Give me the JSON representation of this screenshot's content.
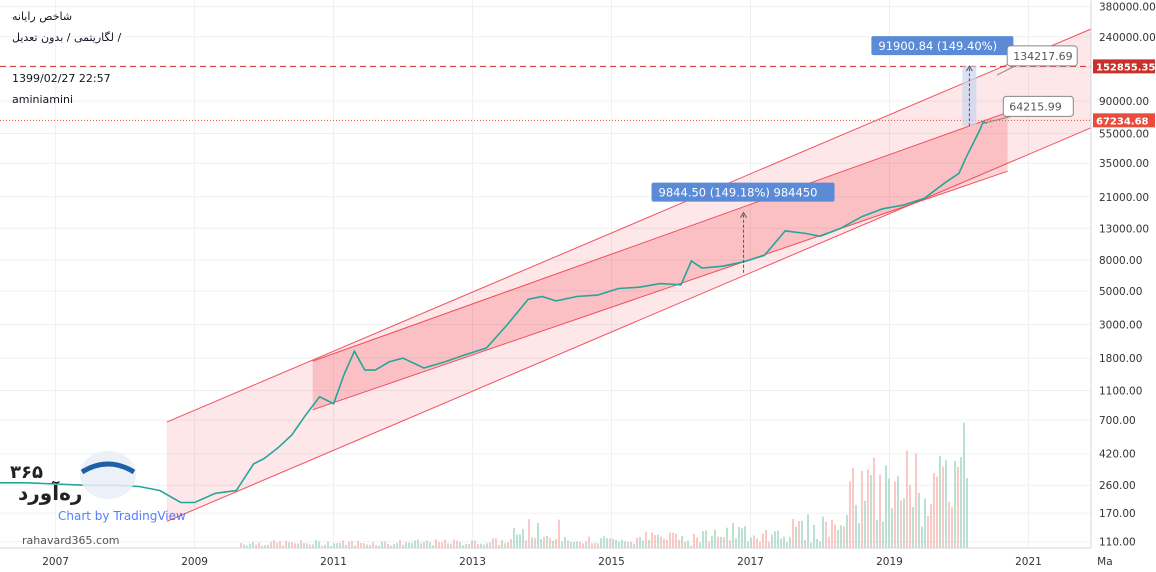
{
  "header": {
    "symbol_name": "شاخص رایانه",
    "scale_info": "لگاریتمی / بدون تعدیل /",
    "datetime": "1399/02/27 22:57",
    "author": "aminiamini"
  },
  "watermark": {
    "brand_number": "۳۶۵",
    "brand_name": "ره‌آورد",
    "chart_text": "Chart by TradingView",
    "website": "rahavard365.com"
  },
  "colors": {
    "up_candle": "#26a69a",
    "down_candle": "#ef5350",
    "channel": "#f23645",
    "measure_box": "#5b8ad6",
    "price_line_high": "#c9302c",
    "price_line_current": "#e74c3c"
  },
  "chart_data": {
    "type": "line",
    "title": "شاخص رایانه",
    "yscale": "log",
    "ylim": [
      100,
      420000
    ],
    "xlim": [
      2006.2,
      2021.9
    ],
    "x_ticks": [
      "2007",
      "2009",
      "2011",
      "2013",
      "2015",
      "2017",
      "2019",
      "2021",
      "Ma"
    ],
    "x_tick_values": [
      2007,
      2009,
      2011,
      2013,
      2015,
      2017,
      2019,
      2021,
      2022.1
    ],
    "y_ticks": [
      "380000.00",
      "240000.00",
      "150000.00",
      "90000.00",
      "55000.00",
      "35000.00",
      "21000.00",
      "13000.00",
      "8000.00",
      "5000.00",
      "3000.00",
      "1800.00",
      "1100.00",
      "700.00",
      "420.00",
      "260.00",
      "170.00",
      "110.00"
    ],
    "y_tick_values": [
      380000,
      240000,
      150000,
      90000,
      55000,
      35000,
      21000,
      13000,
      8000,
      5000,
      3000,
      1800,
      1100,
      700,
      420,
      260,
      170,
      110
    ],
    "price_labels": [
      {
        "label": "152855.35",
        "value": 152855.35
      },
      {
        "label": "67234.68",
        "value": 67234.68
      }
    ],
    "series": [
      {
        "name": "",
        "x": [
          2006.2,
          2006.6,
          2007.0,
          2007.4,
          2007.8,
          2008.2,
          2008.5,
          2008.8,
          2009.0,
          2009.3,
          2009.6,
          2009.85,
          2010.0,
          2010.2,
          2010.4,
          2010.6,
          2010.8,
          2011.0,
          2011.15,
          2011.3,
          2011.45,
          2011.6,
          2011.8,
          2012.0,
          2012.3,
          2012.6,
          2012.9,
          2013.2,
          2013.5,
          2013.8,
          2014.0,
          2014.2,
          2014.5,
          2014.8,
          2015.1,
          2015.4,
          2015.7,
          2016.0,
          2016.15,
          2016.3,
          2016.6,
          2016.9,
          2017.2,
          2017.5,
          2017.8,
          2018.0,
          2018.3,
          2018.6,
          2018.9,
          2019.2,
          2019.5,
          2019.8,
          2020.0,
          2020.1,
          2020.2,
          2020.3,
          2020.35,
          2020.4
        ],
        "y": [
          270,
          270,
          265,
          260,
          260,
          255,
          240,
          200,
          200,
          230,
          240,
          360,
          390,
          460,
          560,
          760,
          1000,
          900,
          1400,
          2000,
          1500,
          1500,
          1700,
          1800,
          1550,
          1700,
          1900,
          2100,
          3000,
          4400,
          4600,
          4300,
          4600,
          4700,
          5200,
          5300,
          5600,
          5500,
          7900,
          7100,
          7300,
          7800,
          8600,
          12500,
          12000,
          11500,
          13000,
          15500,
          17500,
          18500,
          20500,
          26000,
          30000,
          38000,
          47000,
          58000,
          66000,
          64216
        ]
      }
    ],
    "channel": {
      "upper": {
        "x": [
          2008.6,
          2021.9
        ],
        "y": [
          680,
          270000
        ]
      },
      "lower": {
        "x": [
          2008.6,
          2021.9
        ],
        "y": [
          150,
          60000
        ]
      },
      "inner_upper": {
        "x": [
          2010.7,
          2020.7
        ],
        "y": [
          1720,
          76000
        ]
      },
      "inner_lower": {
        "x": [
          2010.7,
          2020.7
        ],
        "y": [
          820,
          31000
        ]
      }
    },
    "measures": [
      {
        "label": "9844.50 (149.18%) 984450",
        "x": 2016.9,
        "y_from": 6600,
        "y_to": 16500
      },
      {
        "label": "91900.84 (149.40%)",
        "x": 2020.15,
        "y_from": 61500,
        "y_to": 153400
      }
    ],
    "callouts": [
      {
        "label": "134217.69",
        "x": 2020.55,
        "y": 134217.69
      },
      {
        "label": "64215.99",
        "x": 2020.35,
        "y": 64215.99
      }
    ]
  }
}
